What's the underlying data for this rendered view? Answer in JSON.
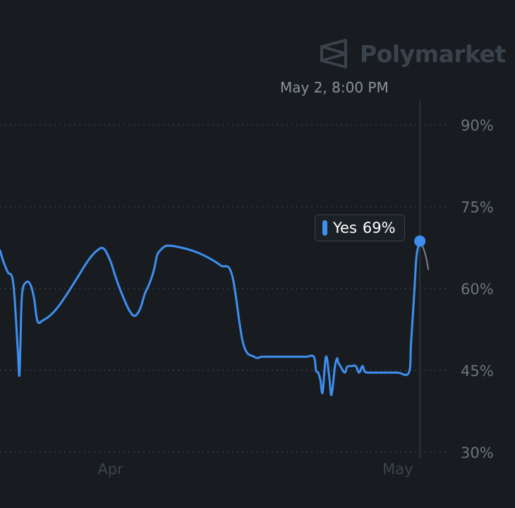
{
  "brand": {
    "name": "Polymarket",
    "icon": "polymarket-logo-icon"
  },
  "hover": {
    "date_label": "May 2, 8:00 PM",
    "series_label": "Yes",
    "value_label": "69%"
  },
  "colors": {
    "background": "#181c21",
    "line": "#3e8ff0",
    "grid": "#3a414a",
    "axis_text": "#6c737c"
  },
  "chart_data": {
    "type": "line",
    "ylim": [
      30,
      90
    ],
    "yticks": [
      {
        "value": 90,
        "label": "90%"
      },
      {
        "value": 75,
        "label": "75%"
      },
      {
        "value": 60,
        "label": "60%"
      },
      {
        "value": 45,
        "label": "45%"
      },
      {
        "value": 30,
        "label": "30%"
      }
    ],
    "xticks": [
      {
        "x": 10,
        "label": "Apr"
      },
      {
        "x": 36,
        "label": "May"
      }
    ],
    "xlim": [
      0,
      38.5
    ],
    "grid": true,
    "series": [
      {
        "name": "Yes",
        "x": [
          0,
          0.3,
          0.7,
          1.2,
          1.6,
          1.75,
          1.85,
          2.0,
          2.4,
          2.8,
          3.1,
          3.4,
          3.9,
          4.5,
          5.2,
          6.0,
          7.0,
          8.0,
          8.8,
          9.4,
          10.0,
          10.4,
          10.8,
          11.2,
          11.7,
          12.2,
          12.7,
          13.1,
          13.5,
          13.8,
          14.0,
          14.2,
          14.5,
          15.0,
          15.6,
          16.2,
          17.0,
          18.0,
          19.0,
          20.0,
          21.0,
          22.0,
          23.0,
          23.7,
          23.9,
          24.1,
          24.4,
          24.7,
          25.3,
          26.0,
          26.8,
          27.7,
          28.4,
          28.6,
          28.8,
          29.0,
          29.2,
          29.5,
          29.8,
          30.0,
          30.3,
          30.5,
          30.6,
          30.8,
          31.2,
          31.4,
          31.6,
          31.8,
          32.2,
          32.5,
          32.8,
          33.0,
          33.3,
          33.5,
          33.8,
          34.0,
          34.3,
          34.6,
          35.0,
          36.0,
          37.0,
          37.2,
          37.5,
          37.7,
          38.0
        ],
        "y": [
          67,
          65,
          63,
          61,
          49,
          44,
          50,
          59,
          61.2,
          60.5,
          58,
          54,
          54.2,
          55,
          56.5,
          58.8,
          62,
          65.2,
          67,
          67.3,
          65,
          62.5,
          60.2,
          58.2,
          56,
          55,
          56.4,
          59,
          60.8,
          62.5,
          64,
          66,
          67,
          67.8,
          67.8,
          67.6,
          67.2,
          66.5,
          65.5,
          64.2,
          62.5,
          50,
          47.5,
          47.5,
          47.5,
          47.5,
          47.5,
          47.5,
          47.5,
          47.5,
          47.5,
          47.5,
          47.5,
          45,
          44.6,
          43.2,
          41,
          47.5,
          43.8,
          40.5,
          45.5,
          47.2,
          46.5,
          45.8,
          44.6,
          45.6,
          45.8,
          45.8,
          45.8,
          44.6,
          45.8,
          44.8,
          44.6,
          44.6,
          44.6,
          44.6,
          44.6,
          44.6,
          44.6,
          44.6,
          44.6,
          50,
          59.5,
          66,
          68.7
        ]
      }
    ]
  }
}
